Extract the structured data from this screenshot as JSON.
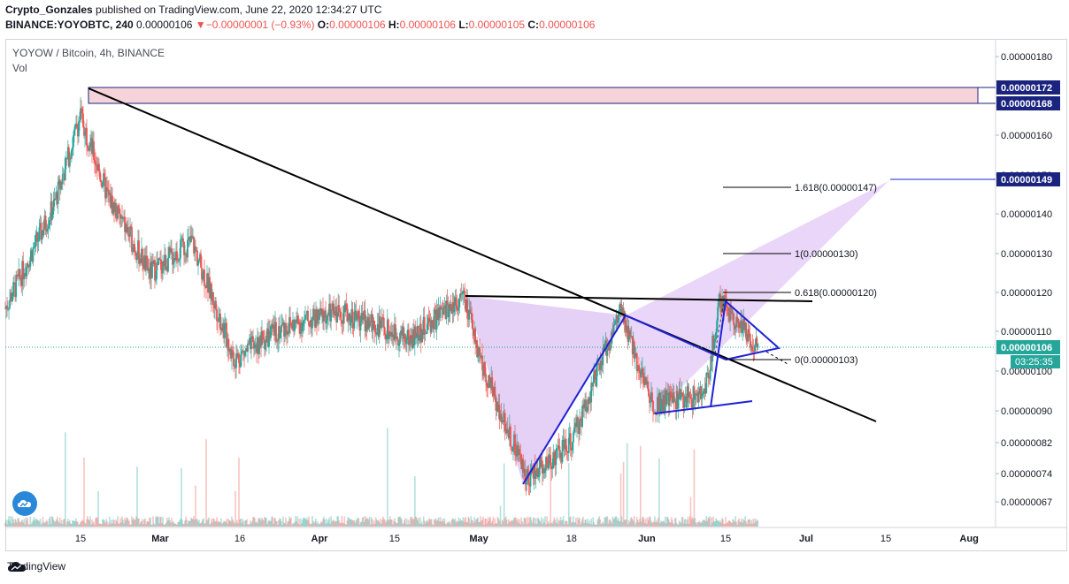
{
  "header": {
    "author": "Crypto_Gonzales",
    "published": " published on TradingView.com, June 22, 2020 12:34:27 UTC",
    "symbol": "BINANCE:YOYOBTC, 240",
    "last": "0.00000106",
    "arrow": "▼",
    "change": "−0.00000001 (−0.93%)",
    "o_label": "O:",
    "o_value": "0.00000106",
    "h_label": "H:",
    "h_value": "0.00000106",
    "l_label": "L:",
    "l_value": "0.00000105",
    "c_label": "C:",
    "c_value": "0.00000106"
  },
  "legend": {
    "title": "YOYOW / Bitcoin, 4h, BINANCE",
    "vol": "Vol"
  },
  "footer": {
    "brand": "TradingView"
  },
  "colors": {
    "up": "#26a69a",
    "down": "#ef5350",
    "trend": "#000000",
    "pattern": "#1e22d6",
    "harmonic_fill": "#e1c8f5",
    "zone_fill": "#f5d3d8",
    "zone_border": "#1a237e",
    "price_tag": "#1a237e",
    "last_tag": "#26a69a"
  },
  "chart_data": {
    "type": "candlestick",
    "x_ticks": [
      "15",
      "Mar",
      "16",
      "Apr",
      "15",
      "May",
      "18",
      "Jun",
      "15",
      "Jul",
      "15",
      "Aug"
    ],
    "y_ticks": [
      "0.00000180",
      "0.00000160",
      "0.00000150",
      "0.00000140",
      "0.00000130",
      "0.00000120",
      "0.00000110",
      "0.00000100",
      "0.00000090",
      "0.00000082",
      "0.00000074",
      "0.00000067"
    ],
    "price_tags": [
      {
        "label": "0.00000172",
        "price": 172
      },
      {
        "label": "0.00000168",
        "price": 168
      },
      {
        "label": "0.00000149",
        "price": 149
      }
    ],
    "last_price_tag": {
      "label": "0.00000106",
      "price": 106,
      "countdown": "03:25:35"
    },
    "fib_levels": [
      {
        "label": "1.618(0.00000147)",
        "price": 147
      },
      {
        "label": "1(0.00000130)",
        "price": 130
      },
      {
        "label": "0.618(0.00000120)",
        "price": 120
      },
      {
        "label": "0(0.00000103)",
        "price": 103
      }
    ],
    "resistance_zone": [
      168,
      172
    ],
    "price_path": [
      {
        "date": "Feb 1",
        "price": 116
      },
      {
        "date": "Feb 10",
        "price": 142
      },
      {
        "date": "Feb 15",
        "price": 165
      },
      {
        "date": "Feb 20",
        "price": 145
      },
      {
        "date": "Feb 28",
        "price": 125
      },
      {
        "date": "Mar 8",
        "price": 133
      },
      {
        "date": "Mar 16",
        "price": 103
      },
      {
        "date": "Mar 25",
        "price": 111
      },
      {
        "date": "Apr 5",
        "price": 115
      },
      {
        "date": "Apr 18",
        "price": 108
      },
      {
        "date": "Apr 28",
        "price": 119
      },
      {
        "date": "May 2",
        "price": 100
      },
      {
        "date": "May 10",
        "price": 73
      },
      {
        "date": "May 18",
        "price": 82
      },
      {
        "date": "May 27",
        "price": 115
      },
      {
        "date": "Jun 2",
        "price": 92
      },
      {
        "date": "Jun 12",
        "price": 94
      },
      {
        "date": "Jun 15",
        "price": 118
      },
      {
        "date": "Jun 22",
        "price": 106
      }
    ]
  }
}
